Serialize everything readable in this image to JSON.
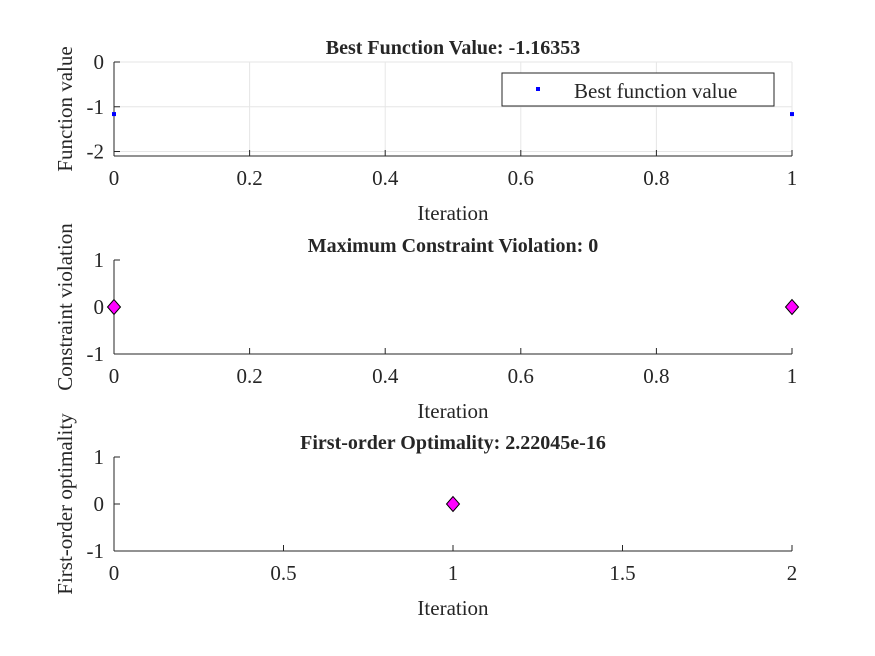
{
  "chart_data": [
    {
      "type": "scatter",
      "title": "Best Function Value: -1.16353",
      "xlabel": "Iteration",
      "ylabel": "Function value",
      "xlim": [
        0,
        1
      ],
      "ylim": [
        -2.1,
        0
      ],
      "xticks": [
        "0",
        "0.2",
        "0.4",
        "0.6",
        "0.8",
        "1"
      ],
      "xtick_values": [
        0,
        0.2,
        0.4,
        0.6,
        0.8,
        1
      ],
      "yticks": [
        "0",
        "-1",
        "-2"
      ],
      "ytick_values": [
        0,
        -1,
        -2
      ],
      "grid": true,
      "legend": {
        "position": "top-right",
        "entries": [
          "Best function value"
        ]
      },
      "series": [
        {
          "name": "Best function value",
          "marker": "dot",
          "color": "#0000ff",
          "x": [
            0,
            1
          ],
          "y": [
            -1.16353,
            -1.16353
          ]
        }
      ]
    },
    {
      "type": "scatter",
      "title": "Maximum Constraint Violation: 0",
      "xlabel": "Iteration",
      "ylabel": "Constraint violation",
      "xlim": [
        0,
        1
      ],
      "ylim": [
        -1,
        1
      ],
      "xticks": [
        "0",
        "0.2",
        "0.4",
        "0.6",
        "0.8",
        "1"
      ],
      "xtick_values": [
        0,
        0.2,
        0.4,
        0.6,
        0.8,
        1
      ],
      "yticks": [
        "1",
        "0",
        "-1"
      ],
      "ytick_values": [
        1,
        0,
        -1
      ],
      "grid": false,
      "series": [
        {
          "marker": "diamond",
          "color": "#ff00ff",
          "x": [
            0,
            1
          ],
          "y": [
            0,
            0
          ]
        }
      ]
    },
    {
      "type": "scatter",
      "title": "First-order Optimality: 2.22045e-16",
      "xlabel": "Iteration",
      "ylabel": "First-order optimality",
      "xlim": [
        0,
        2
      ],
      "ylim": [
        -1,
        1
      ],
      "xticks": [
        "0",
        "0.5",
        "1",
        "1.5",
        "2"
      ],
      "xtick_values": [
        0,
        0.5,
        1,
        1.5,
        2
      ],
      "yticks": [
        "1",
        "0",
        "-1"
      ],
      "ytick_values": [
        1,
        0,
        -1
      ],
      "grid": false,
      "series": [
        {
          "marker": "diamond",
          "color": "#ff00ff",
          "x": [
            1
          ],
          "y": [
            0
          ]
        }
      ]
    }
  ]
}
